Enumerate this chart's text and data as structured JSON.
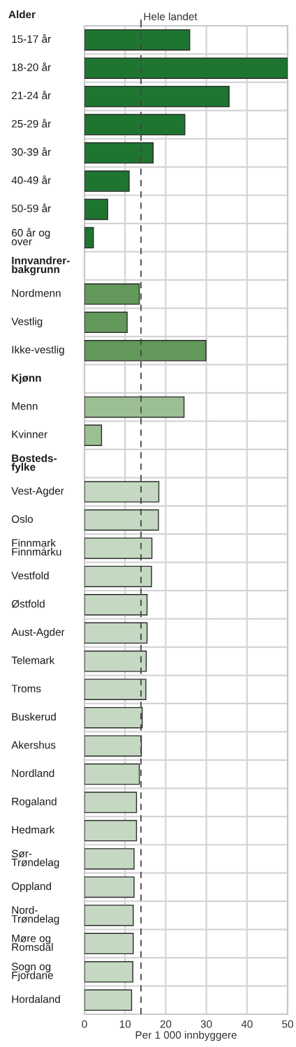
{
  "chart_data": {
    "type": "bar",
    "orientation": "horizontal",
    "title": "Alder",
    "xlabel": "Per 1 000 innbyggere",
    "categories": [
      "15-17 år",
      "18-20 år",
      "21-24 år",
      "25-29 år",
      "30-39 år",
      "40-49 år",
      "50-59 år",
      "60 år og\nover",
      "Innvandrer-\nbakgrunn",
      "Nordmenn",
      "Vestlig",
      "Ikke-vestlig",
      "Kjønn",
      "Menn",
      "Kvinner",
      "Bosteds-\nfylke",
      "Vest-Agder",
      "Oslo",
      "Finnmark\nFinnmárku",
      "Vestfold",
      "Østfold",
      "Aust-Agder",
      "Telemark",
      "Troms",
      "Buskerud",
      "Akershus",
      "Nordland",
      "Rogaland",
      "Hedmark",
      "Sør-\nTrøndelag",
      "Oppland",
      "Nord-\nTrøndelag",
      "Møre og\nRomsdal",
      "Sogn og\nFjordane",
      "Hordaland"
    ],
    "values": [
      25.9,
      50,
      35.6,
      24.7,
      16.9,
      11.0,
      5.7,
      2.2,
      null,
      13.5,
      10.5,
      29.9,
      null,
      24.5,
      4.2,
      null,
      18.3,
      18.2,
      16.6,
      16.5,
      15.4,
      15.4,
      15.2,
      15.1,
      14.2,
      14.0,
      13.5,
      12.8,
      12.8,
      12.2,
      12.2,
      12.0,
      12.0,
      11.9,
      11.6
    ],
    "colors": [
      "#1e7530",
      "#1e7530",
      "#1e7530",
      "#1e7530",
      "#1e7530",
      "#1e7530",
      "#1e7530",
      "#1e7530",
      null,
      "#62985a",
      "#62985a",
      "#62985a",
      null,
      "#9dbf95",
      "#9dbf95",
      null,
      "#c5d9c2",
      "#c5d9c2",
      "#c5d9c2",
      "#c5d9c2",
      "#c5d9c2",
      "#c5d9c2",
      "#c5d9c2",
      "#c5d9c2",
      "#c5d9c2",
      "#c5d9c2",
      "#c5d9c2",
      "#c5d9c2",
      "#c5d9c2",
      "#c5d9c2",
      "#c5d9c2",
      "#c5d9c2",
      "#c5d9c2",
      "#c5d9c2",
      "#c5d9c2"
    ],
    "xlim": [
      0,
      50
    ],
    "xticks": [
      0,
      10,
      20,
      30,
      40,
      50
    ],
    "grid": true,
    "ref_lines": [
      {
        "axis": "x",
        "value": 13.9,
        "label": "Hele landet",
        "line_style": "dashed",
        "color": "#444444"
      }
    ]
  }
}
